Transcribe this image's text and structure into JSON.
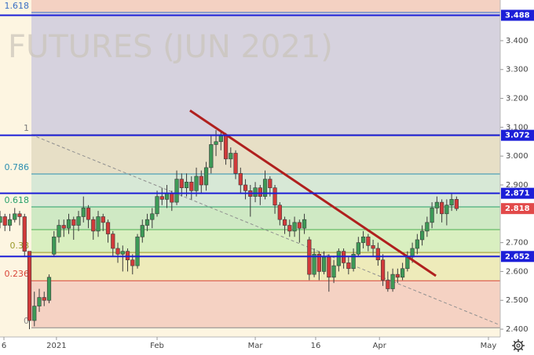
{
  "chart_data": {
    "type": "candlestick",
    "watermark": "FUTURES (JUN 2021)",
    "up_color": "#3d9a57",
    "down_color": "#d23a3a",
    "xlim": [
      0,
      101.9
    ],
    "ylim": [
      2.373,
      3.541
    ],
    "xticks": [
      {
        "value": 0.8,
        "label": "6"
      },
      {
        "value": 11.5,
        "label": "2021"
      },
      {
        "value": 32,
        "label": "Feb"
      },
      {
        "value": 52,
        "label": "Mar"
      },
      {
        "value": 64.3,
        "label": "16"
      },
      {
        "value": 77.3,
        "label": "Apr"
      },
      {
        "value": 99.5,
        "label": "May"
      }
    ],
    "yticks": [
      {
        "value": 2.4,
        "label": "2.400"
      },
      {
        "value": 2.5,
        "label": "2.500"
      },
      {
        "value": 2.6,
        "label": "2.600"
      },
      {
        "value": 2.7,
        "label": "2.700"
      },
      {
        "value": 2.9,
        "label": "2.900"
      },
      {
        "value": 3.0,
        "label": "3.000"
      },
      {
        "value": 3.1,
        "label": "3.100"
      },
      {
        "value": 3.2,
        "label": "3.200"
      },
      {
        "value": 3.3,
        "label": "3.300"
      },
      {
        "value": 3.4,
        "label": "3.400"
      }
    ],
    "x": [
      0,
      1,
      2,
      3,
      4,
      5,
      6,
      7,
      8,
      9,
      10,
      11,
      12,
      13,
      14,
      15,
      16,
      17,
      18,
      19,
      20,
      21,
      22,
      23,
      24,
      25,
      26,
      27,
      28,
      29,
      30,
      31,
      32,
      33,
      34,
      35,
      36,
      37,
      38,
      39,
      40,
      41,
      42,
      43,
      44,
      45,
      46,
      47,
      48,
      49,
      50,
      51,
      52,
      53,
      54,
      55,
      56,
      57,
      58,
      59,
      60,
      61,
      62,
      63,
      64,
      65,
      66,
      67,
      68,
      69,
      70,
      71,
      72,
      73,
      74,
      75,
      76,
      77,
      78,
      79,
      80,
      81,
      82,
      83,
      84,
      85,
      86,
      87,
      88,
      89,
      90,
      91,
      92,
      93
    ],
    "open": [
      2.77,
      2.79,
      2.76,
      2.78,
      2.8,
      2.79,
      2.67,
      2.43,
      2.48,
      2.51,
      2.5,
      2.66,
      2.72,
      2.76,
      2.75,
      2.78,
      2.76,
      2.79,
      2.82,
      2.78,
      2.74,
      2.79,
      2.77,
      2.73,
      2.68,
      2.66,
      2.67,
      2.64,
      2.62,
      2.72,
      2.76,
      2.78,
      2.8,
      2.86,
      2.85,
      2.87,
      2.84,
      2.92,
      2.89,
      2.91,
      2.88,
      2.93,
      2.9,
      2.96,
      3.04,
      3.05,
      3.07,
      2.99,
      3.01,
      2.94,
      2.9,
      2.88,
      2.86,
      2.89,
      2.86,
      2.92,
      2.89,
      2.83,
      2.78,
      2.76,
      2.74,
      2.77,
      2.75,
      2.71,
      2.59,
      2.66,
      2.6,
      2.65,
      2.58,
      2.62,
      2.67,
      2.63,
      2.61,
      2.66,
      2.7,
      2.72,
      2.69,
      2.68,
      2.64,
      2.57,
      2.54,
      2.59,
      2.58,
      2.61,
      2.65,
      2.68,
      2.71,
      2.74,
      2.77,
      2.82,
      2.84,
      2.8,
      2.83,
      2.85
    ],
    "high": [
      2.81,
      2.8,
      2.8,
      2.82,
      2.81,
      2.8,
      2.67,
      2.53,
      2.54,
      2.53,
      2.59,
      2.74,
      2.78,
      2.78,
      2.8,
      2.79,
      2.81,
      2.86,
      2.83,
      2.79,
      2.81,
      2.8,
      2.78,
      2.74,
      2.7,
      2.69,
      2.68,
      2.66,
      2.73,
      2.78,
      2.8,
      2.82,
      2.88,
      2.89,
      2.9,
      2.88,
      2.95,
      2.94,
      2.94,
      2.93,
      2.96,
      2.95,
      2.98,
      3.07,
      3.09,
      3.09,
      3.08,
      3.03,
      3.02,
      2.96,
      2.92,
      2.9,
      2.91,
      2.9,
      2.95,
      2.93,
      2.9,
      2.84,
      2.79,
      2.78,
      2.79,
      2.78,
      2.8,
      2.72,
      2.68,
      2.67,
      2.67,
      2.66,
      2.64,
      2.68,
      2.68,
      2.65,
      2.68,
      2.72,
      2.74,
      2.73,
      2.71,
      2.7,
      2.66,
      2.6,
      2.61,
      2.61,
      2.63,
      2.67,
      2.7,
      2.73,
      2.76,
      2.79,
      2.84,
      2.86,
      2.85,
      2.85,
      2.87,
      2.86
    ],
    "low": [
      2.75,
      2.74,
      2.74,
      2.77,
      2.76,
      2.65,
      2.4,
      2.41,
      2.46,
      2.48,
      2.49,
      2.65,
      2.7,
      2.72,
      2.73,
      2.71,
      2.74,
      2.77,
      2.75,
      2.71,
      2.72,
      2.74,
      2.7,
      2.65,
      2.63,
      2.6,
      2.6,
      2.59,
      2.61,
      2.7,
      2.74,
      2.75,
      2.79,
      2.83,
      2.82,
      2.81,
      2.83,
      2.86,
      2.86,
      2.85,
      2.86,
      2.87,
      2.88,
      2.94,
      3.0,
      3.02,
      2.97,
      2.96,
      2.92,
      2.87,
      2.85,
      2.79,
      2.84,
      2.83,
      2.85,
      2.86,
      2.8,
      2.76,
      2.73,
      2.72,
      2.72,
      2.7,
      2.73,
      2.57,
      2.58,
      2.57,
      2.59,
      2.53,
      2.56,
      2.6,
      2.61,
      2.59,
      2.6,
      2.65,
      2.68,
      2.67,
      2.65,
      2.62,
      2.55,
      2.53,
      2.53,
      2.56,
      2.57,
      2.6,
      2.63,
      2.66,
      2.69,
      2.72,
      2.75,
      2.8,
      2.77,
      2.76,
      2.81,
      2.81
    ],
    "close": [
      2.79,
      2.76,
      2.78,
      2.8,
      2.79,
      2.67,
      2.43,
      2.48,
      2.51,
      2.5,
      2.58,
      2.72,
      2.76,
      2.75,
      2.78,
      2.76,
      2.79,
      2.82,
      2.78,
      2.74,
      2.79,
      2.77,
      2.73,
      2.68,
      2.66,
      2.67,
      2.64,
      2.62,
      2.72,
      2.76,
      2.78,
      2.8,
      2.86,
      2.85,
      2.87,
      2.84,
      2.92,
      2.89,
      2.91,
      2.88,
      2.93,
      2.9,
      2.96,
      3.04,
      3.05,
      3.07,
      2.99,
      3.01,
      2.94,
      2.9,
      2.88,
      2.86,
      2.89,
      2.86,
      2.92,
      2.89,
      2.83,
      2.78,
      2.76,
      2.74,
      2.77,
      2.75,
      2.78,
      2.59,
      2.66,
      2.6,
      2.65,
      2.58,
      2.62,
      2.67,
      2.63,
      2.61,
      2.66,
      2.7,
      2.72,
      2.69,
      2.68,
      2.64,
      2.57,
      2.54,
      2.59,
      2.58,
      2.61,
      2.65,
      2.68,
      2.71,
      2.74,
      2.77,
      2.82,
      2.84,
      2.8,
      2.83,
      2.85,
      2.818
    ],
    "fib_x_start": 6.4,
    "fib_levels": [
      {
        "ratio": 0,
        "price": 2.405,
        "color": "#8a8a8a"
      },
      {
        "ratio": 0.236,
        "price": 2.568,
        "color": "#d9453a"
      },
      {
        "ratio": 0.38,
        "price": 2.666,
        "color": "#9a9a2a"
      },
      {
        "price": 2.745,
        "color": "#4caf50"
      },
      {
        "ratio": 0.618,
        "price": 2.824,
        "color": "#27a06a"
      },
      {
        "ratio": 0.786,
        "price": 2.938,
        "color": "#2d8fb0"
      },
      {
        "ratio": 1,
        "price": 3.074,
        "color": "#7a7a7a"
      },
      {
        "ratio": 1.618,
        "price": 3.498,
        "color": "#3a6fc4"
      }
    ],
    "fib_zone_colors": [
      "#f5d2c3",
      "#eeebba",
      "#d9efc0",
      "#cfe9c4",
      "#d7e8d6",
      "#e7dfc6",
      "#d6d2de",
      "#f4d1c2"
    ],
    "hlines": [
      3.488,
      3.072,
      2.871,
      2.652
    ],
    "hline_color": "#1c1fd8",
    "last_price": 2.818,
    "last_price_color": "#e24a4a",
    "trendline": {
      "color": "#b0201e",
      "points": [
        [
          38.7,
          3.158
        ],
        [
          88.8,
          2.585
        ]
      ]
    },
    "dashed_line": {
      "color": "#909090",
      "points": [
        [
          6.4,
          3.074
        ],
        [
          101.9,
          2.414
        ]
      ]
    }
  }
}
